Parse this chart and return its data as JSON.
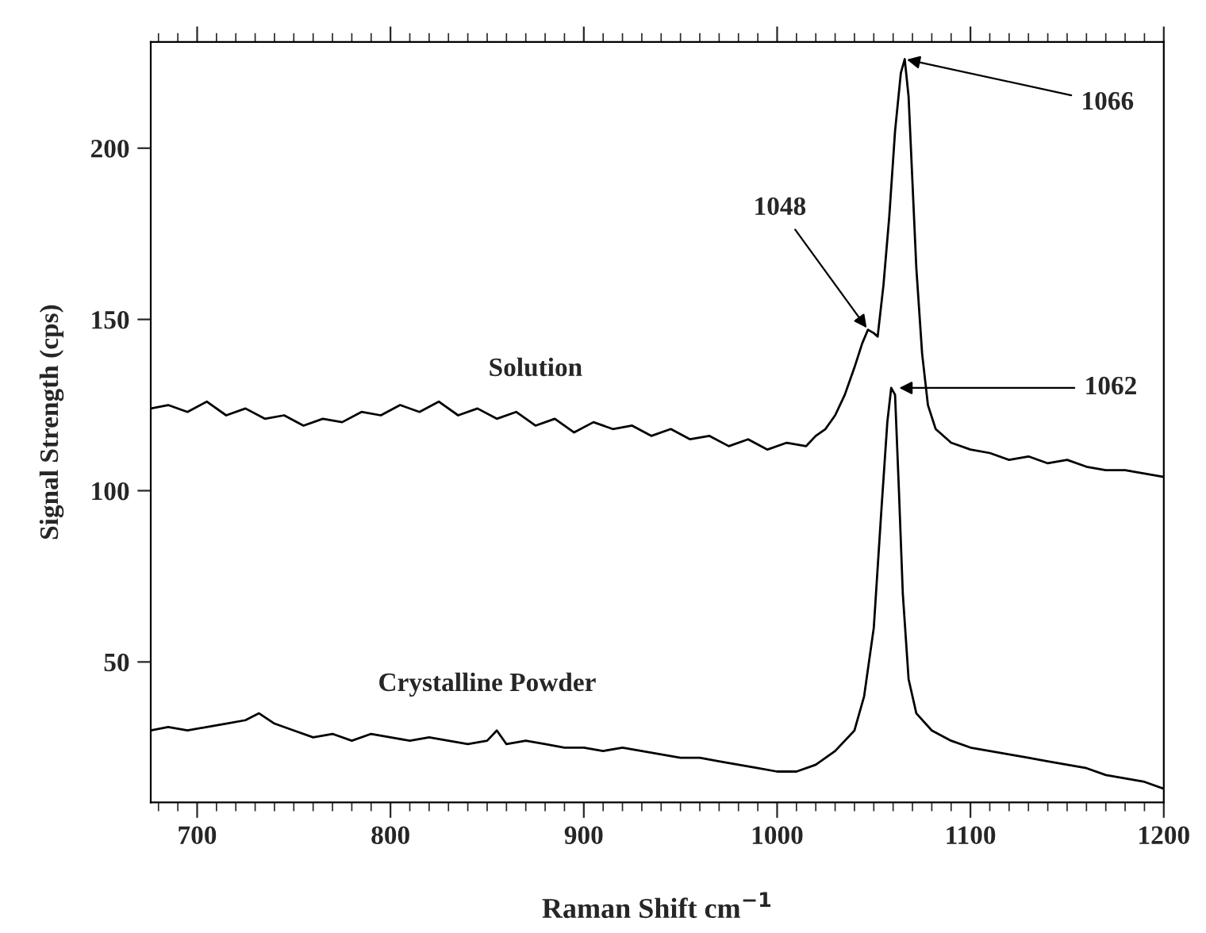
{
  "chart_data": {
    "type": "line",
    "xlabel": "Raman Shift cm$^{−1}$",
    "ylabel": "Signal Strength (cps)",
    "xlim": [
      676,
      1200
    ],
    "ylim": [
      9,
      231
    ],
    "xticks": [
      700,
      800,
      900,
      1000,
      1100,
      1200
    ],
    "yticks": [
      50,
      100,
      150,
      200
    ],
    "grid": false,
    "legend": false,
    "marker": "none",
    "line_style": "solid",
    "series": [
      {
        "name": "Solution",
        "color": "#000000",
        "x": [
          676,
          685,
          695,
          705,
          715,
          725,
          735,
          745,
          755,
          765,
          775,
          785,
          795,
          805,
          815,
          825,
          835,
          845,
          855,
          865,
          875,
          885,
          895,
          905,
          915,
          925,
          935,
          945,
          955,
          965,
          975,
          985,
          995,
          1005,
          1015,
          1020,
          1025,
          1030,
          1035,
          1040,
          1044,
          1047,
          1050,
          1052,
          1055,
          1058,
          1061,
          1064,
          1066,
          1068,
          1070,
          1072,
          1075,
          1078,
          1082,
          1090,
          1100,
          1110,
          1120,
          1130,
          1140,
          1150,
          1160,
          1170,
          1180,
          1190,
          1200
        ],
        "values": [
          124,
          125,
          123,
          126,
          122,
          124,
          121,
          122,
          119,
          121,
          120,
          123,
          122,
          125,
          123,
          126,
          122,
          124,
          121,
          123,
          119,
          121,
          117,
          120,
          118,
          119,
          116,
          118,
          115,
          116,
          113,
          115,
          112,
          114,
          113,
          116,
          118,
          122,
          128,
          136,
          143,
          147,
          146,
          145,
          160,
          180,
          205,
          222,
          226,
          215,
          190,
          165,
          140,
          125,
          118,
          114,
          112,
          111,
          109,
          110,
          108,
          109,
          107,
          106,
          106,
          105,
          104
        ]
      },
      {
        "name": "Crystalline Powder",
        "color": "#000000",
        "x": [
          676,
          685,
          695,
          705,
          715,
          725,
          732,
          740,
          750,
          760,
          770,
          780,
          790,
          800,
          810,
          820,
          830,
          840,
          850,
          855,
          860,
          870,
          880,
          890,
          900,
          910,
          920,
          930,
          940,
          950,
          960,
          970,
          980,
          990,
          1000,
          1010,
          1020,
          1030,
          1040,
          1045,
          1050,
          1054,
          1057,
          1059,
          1061,
          1063,
          1065,
          1068,
          1072,
          1080,
          1090,
          1100,
          1110,
          1120,
          1130,
          1140,
          1150,
          1160,
          1170,
          1180,
          1190,
          1200
        ],
        "values": [
          30,
          31,
          30,
          31,
          32,
          33,
          35,
          32,
          30,
          28,
          29,
          27,
          29,
          28,
          27,
          28,
          27,
          26,
          27,
          30,
          26,
          27,
          26,
          25,
          25,
          24,
          25,
          24,
          23,
          22,
          22,
          21,
          20,
          19,
          18,
          18,
          20,
          24,
          30,
          40,
          60,
          95,
          120,
          130,
          128,
          100,
          70,
          45,
          35,
          30,
          27,
          25,
          24,
          23,
          22,
          21,
          20,
          19,
          17,
          16,
          15,
          13
        ]
      }
    ],
    "annotations": [
      {
        "text": "1066",
        "x": 1066,
        "y": 226
      },
      {
        "text": "1048",
        "x": 1047,
        "y": 147
      },
      {
        "text": "1062",
        "x": 1062,
        "y": 130
      }
    ]
  }
}
